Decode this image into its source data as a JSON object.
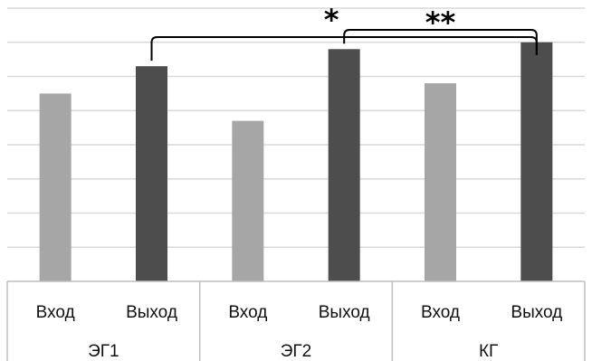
{
  "chart_data": {
    "type": "bar",
    "groups": [
      "ЭГ1",
      "ЭГ2",
      "КГ"
    ],
    "categories": [
      "Вход",
      "Выход",
      "Вход",
      "Выход",
      "Вход",
      "Выход"
    ],
    "series": [
      {
        "values": [
          5.5,
          6.3,
          4.7,
          6.8,
          5.8,
          7.0
        ]
      }
    ],
    "bar_colors": [
      "#a6a6a6",
      "#4d4d4d",
      "#a6a6a6",
      "#4d4d4d",
      "#a6a6a6",
      "#4d4d4d"
    ],
    "ylim": [
      0,
      8
    ],
    "grid": true,
    "annotations": [
      {
        "text": "*",
        "from": "ЭГ1 Выход",
        "to": "КГ Выход"
      },
      {
        "text": "**",
        "from": "ЭГ2 Выход",
        "to": "КГ Выход"
      }
    ]
  }
}
